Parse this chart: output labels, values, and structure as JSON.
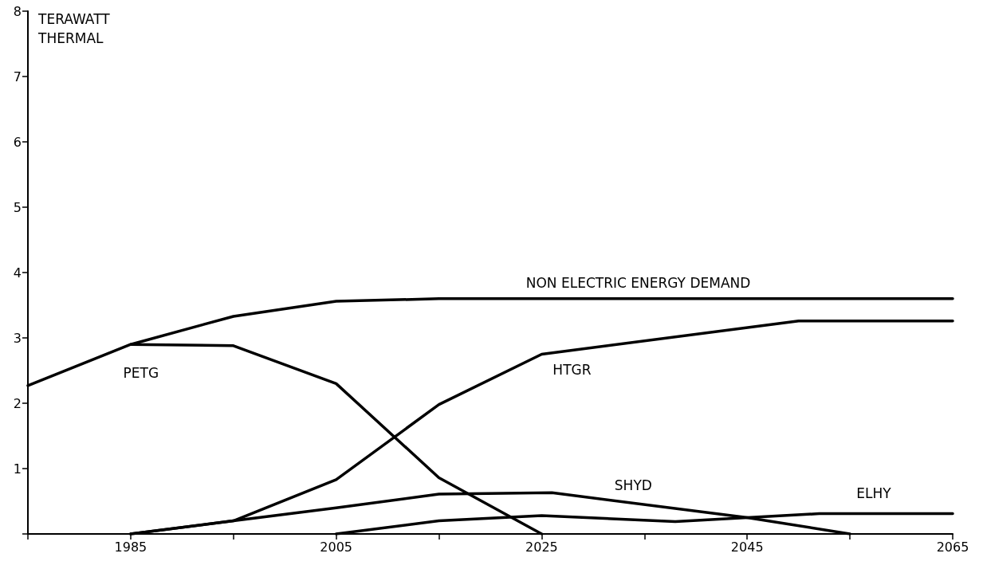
{
  "chart_data": {
    "type": "line",
    "ylabel": "TERAWATT THERMAL",
    "series": [
      {
        "name": "NON ELECTRIC ENERGY DEMAND",
        "color": "#000000",
        "x": [
          1975,
          1985,
          1995,
          2005,
          2015,
          2065
        ],
        "values": [
          2.27,
          2.9,
          3.33,
          3.56,
          3.6,
          3.6
        ]
      },
      {
        "name": "PETG",
        "color": "#000000",
        "x": [
          1985,
          1995,
          2005,
          2015,
          2025
        ],
        "values": [
          2.9,
          2.88,
          2.3,
          0.86,
          0
        ]
      },
      {
        "name": "HTGR",
        "color": "#000000",
        "x": [
          1985,
          1995,
          2005,
          2015,
          2025,
          2050,
          2065
        ],
        "values": [
          0,
          0.2,
          0.83,
          1.98,
          2.75,
          3.26,
          3.26
        ]
      },
      {
        "name": "SHYD",
        "color": "#000000",
        "x": [
          1985,
          1995,
          2005,
          2015,
          2026,
          2045,
          2055
        ],
        "values": [
          0,
          0.2,
          0.4,
          0.61,
          0.63,
          0.25,
          0
        ]
      },
      {
        "name": "ELHY",
        "color": "#000000",
        "x": [
          2005,
          2015,
          2025,
          2038,
          2045,
          2052,
          2065
        ],
        "values": [
          0,
          0.2,
          0.28,
          0.19,
          0.25,
          0.31,
          0.31
        ]
      }
    ],
    "xlim": [
      1975,
      2065
    ],
    "xticks": [
      {
        "value": 1975,
        "label": null
      },
      1985,
      {
        "value": 1995,
        "label": null
      },
      2005,
      {
        "value": 2015,
        "label": null
      },
      2025,
      {
        "value": 2035,
        "label": null
      },
      2045,
      {
        "value": 2055,
        "label": null
      },
      2065
    ],
    "ylim": [
      0,
      8
    ],
    "yticks": [
      {
        "value": 0,
        "label": null
      },
      1,
      2,
      3,
      4,
      5,
      6,
      7,
      8
    ],
    "grid": false,
    "marker": "none",
    "line_style": "solid"
  }
}
